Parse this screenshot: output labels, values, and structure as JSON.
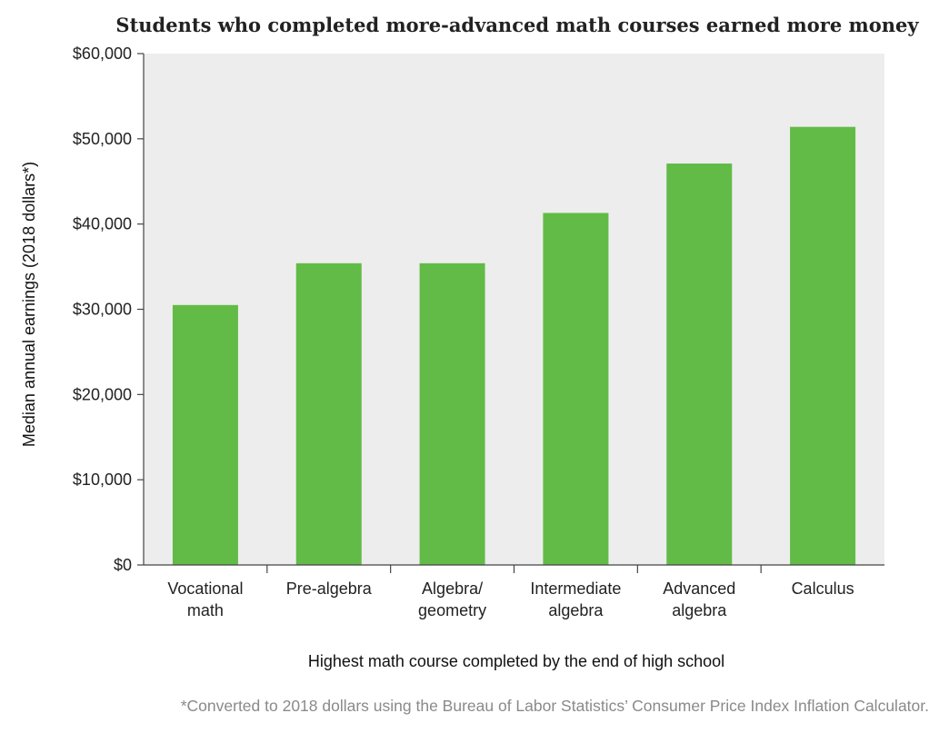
{
  "chart_data": {
    "type": "bar",
    "title": "Students who completed more-advanced math courses earned more money",
    "xlabel": "Highest math course completed by the end of high school",
    "ylabel": "Median annual earnings (2018 dollars*)",
    "footnote": "*Converted to 2018 dollars using the Bureau of Labor Statistics’ Consumer Price Index Inflation Calculator.",
    "categories": [
      [
        "Vocational",
        "math"
      ],
      [
        "Pre-algebra"
      ],
      [
        "Algebra/",
        "geometry"
      ],
      [
        "Intermediate",
        "algebra"
      ],
      [
        "Advanced",
        "algebra"
      ],
      [
        "Calculus"
      ]
    ],
    "values": [
      30500,
      35400,
      35400,
      41300,
      47100,
      51400
    ],
    "ylim": [
      0,
      60000
    ],
    "yticks": [
      0,
      10000,
      20000,
      30000,
      40000,
      50000,
      60000
    ],
    "ytick_labels": [
      "$0",
      "$10,000",
      "$20,000",
      "$30,000",
      "$40,000",
      "$50,000",
      "$60,000"
    ],
    "grid": false,
    "colors": {
      "bar": "#62bb47",
      "plot_background": "#ededed",
      "axis": "#444444"
    }
  }
}
